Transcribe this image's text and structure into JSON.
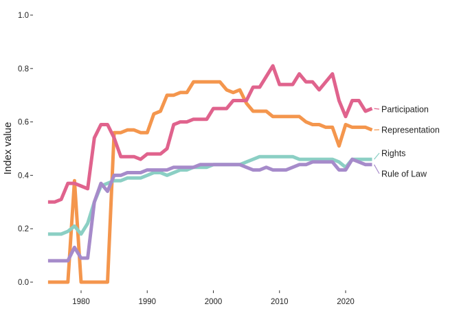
{
  "chart_data": {
    "type": "line",
    "title": "",
    "xlabel": "",
    "ylabel": "Index value",
    "xlim": [
      1975,
      2024
    ],
    "ylim": [
      0,
      1
    ],
    "x_ticks": [
      "1980",
      "1990",
      "2000",
      "2010",
      "2020"
    ],
    "y_ticks": [
      "0.0",
      "0.2",
      "0.4",
      "0.6",
      "0.8",
      "1.0"
    ],
    "grid": false,
    "legend_placement": "direct labels at line ends (right)",
    "x": [
      1975,
      1976,
      1977,
      1978,
      1979,
      1980,
      1981,
      1982,
      1983,
      1984,
      1985,
      1986,
      1987,
      1988,
      1989,
      1990,
      1991,
      1992,
      1993,
      1994,
      1995,
      1996,
      1997,
      1998,
      1999,
      2000,
      2001,
      2002,
      2003,
      2004,
      2005,
      2006,
      2007,
      2008,
      2009,
      2010,
      2011,
      2012,
      2013,
      2014,
      2015,
      2016,
      2017,
      2018,
      2019,
      2020,
      2021,
      2022,
      2023,
      2024
    ],
    "series": [
      {
        "name": "Participation",
        "color": "#e0638d",
        "values": [
          0.3,
          0.3,
          0.31,
          0.37,
          0.37,
          0.36,
          0.35,
          0.54,
          0.59,
          0.59,
          0.54,
          0.47,
          0.47,
          0.47,
          0.46,
          0.48,
          0.48,
          0.48,
          0.5,
          0.59,
          0.6,
          0.6,
          0.61,
          0.61,
          0.61,
          0.65,
          0.65,
          0.65,
          0.68,
          0.68,
          0.68,
          0.73,
          0.73,
          0.77,
          0.81,
          0.74,
          0.74,
          0.74,
          0.78,
          0.75,
          0.75,
          0.72,
          0.75,
          0.78,
          0.68,
          0.62,
          0.68,
          0.68,
          0.64,
          0.65
        ]
      },
      {
        "name": "Representation",
        "color": "#f4964d",
        "values": [
          0.0,
          0.0,
          0.0,
          0.0,
          0.38,
          0.0,
          0.0,
          0.0,
          0.0,
          0.0,
          0.56,
          0.56,
          0.57,
          0.57,
          0.56,
          0.56,
          0.63,
          0.64,
          0.7,
          0.7,
          0.71,
          0.71,
          0.75,
          0.75,
          0.75,
          0.75,
          0.75,
          0.72,
          0.71,
          0.72,
          0.67,
          0.64,
          0.64,
          0.64,
          0.62,
          0.62,
          0.62,
          0.62,
          0.62,
          0.6,
          0.59,
          0.59,
          0.58,
          0.58,
          0.51,
          0.59,
          0.58,
          0.58,
          0.58,
          0.57
        ]
      },
      {
        "name": "Rights",
        "color": "#8bcfc4",
        "values": [
          0.18,
          0.18,
          0.18,
          0.19,
          0.21,
          0.18,
          0.22,
          0.3,
          0.36,
          0.37,
          0.38,
          0.38,
          0.39,
          0.39,
          0.39,
          0.4,
          0.41,
          0.41,
          0.4,
          0.41,
          0.42,
          0.42,
          0.43,
          0.43,
          0.43,
          0.44,
          0.44,
          0.44,
          0.44,
          0.44,
          0.45,
          0.46,
          0.47,
          0.47,
          0.47,
          0.47,
          0.47,
          0.47,
          0.46,
          0.46,
          0.46,
          0.46,
          0.46,
          0.46,
          0.45,
          0.43,
          0.46,
          0.46,
          0.46,
          0.46
        ]
      },
      {
        "name": "Rule of Law",
        "color": "#a68bca",
        "values": [
          0.08,
          0.08,
          0.08,
          0.08,
          0.13,
          0.09,
          0.09,
          0.3,
          0.37,
          0.34,
          0.4,
          0.4,
          0.41,
          0.41,
          0.41,
          0.42,
          0.42,
          0.42,
          0.42,
          0.43,
          0.43,
          0.43,
          0.43,
          0.44,
          0.44,
          0.44,
          0.44,
          0.44,
          0.44,
          0.44,
          0.43,
          0.42,
          0.42,
          0.43,
          0.42,
          0.42,
          0.42,
          0.43,
          0.44,
          0.44,
          0.45,
          0.45,
          0.45,
          0.45,
          0.42,
          0.42,
          0.46,
          0.45,
          0.44,
          0.44
        ]
      }
    ]
  }
}
